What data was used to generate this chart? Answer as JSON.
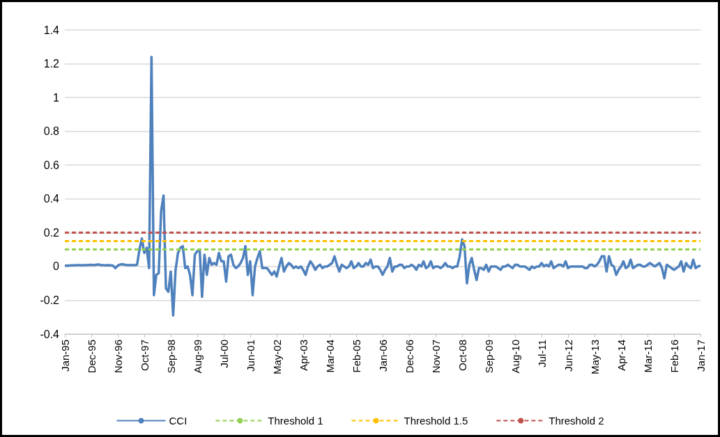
{
  "chart_data": {
    "type": "line",
    "categories": [
      "Jan-95",
      null,
      null,
      null,
      null,
      null,
      null,
      null,
      null,
      null,
      null,
      "Dec-95",
      null,
      null,
      null,
      null,
      null,
      null,
      null,
      null,
      null,
      null,
      "Nov-96",
      null,
      null,
      null,
      null,
      null,
      null,
      null,
      null,
      null,
      null,
      "Oct-97",
      null,
      null,
      null,
      null,
      null,
      null,
      null,
      null,
      null,
      null,
      "Sep-98",
      null,
      null,
      null,
      null,
      null,
      null,
      null,
      null,
      null,
      null,
      "Aug-99",
      null,
      null,
      null,
      null,
      null,
      null,
      null,
      null,
      null,
      null,
      "Jul-00",
      null,
      null,
      null,
      null,
      null,
      null,
      null,
      null,
      null,
      null,
      "Jun-01",
      null,
      null,
      null,
      null,
      null,
      null,
      null,
      null,
      null,
      null,
      "May-02",
      null,
      null,
      null,
      null,
      null,
      null,
      null,
      null,
      null,
      null,
      "Apr-03",
      null,
      null,
      null,
      null,
      null,
      null,
      null,
      null,
      null,
      null,
      "Mar-04",
      null,
      null,
      null,
      null,
      null,
      null,
      null,
      null,
      null,
      null,
      "Feb-05",
      null,
      null,
      null,
      null,
      null,
      null,
      null,
      null,
      null,
      null,
      "Jan-06",
      null,
      null,
      null,
      null,
      null,
      null,
      null,
      null,
      null,
      null,
      "Dec-06",
      null,
      null,
      null,
      null,
      null,
      null,
      null,
      null,
      null,
      null,
      "Nov-07",
      null,
      null,
      null,
      null,
      null,
      null,
      null,
      null,
      null,
      null,
      "Oct-08",
      null,
      null,
      null,
      null,
      null,
      null,
      null,
      null,
      null,
      null,
      "Sep-09",
      null,
      null,
      null,
      null,
      null,
      null,
      null,
      null,
      null,
      null,
      "Aug-10",
      null,
      null,
      null,
      null,
      null,
      null,
      null,
      null,
      null,
      null,
      "Jul-11",
      null,
      null,
      null,
      null,
      null,
      null,
      null,
      null,
      null,
      null,
      "Jun-12",
      null,
      null,
      null,
      null,
      null,
      null,
      null,
      null,
      null,
      null,
      "May-13",
      null,
      null,
      null,
      null,
      null,
      null,
      null,
      null,
      null,
      null,
      "Apr-14",
      null,
      null,
      null,
      null,
      null,
      null,
      null,
      null,
      null,
      null,
      "Mar-15",
      null,
      null,
      null,
      null,
      null,
      null,
      null,
      null,
      null,
      null,
      "Feb-16",
      null,
      null,
      null,
      null,
      null,
      null,
      null,
      null,
      null,
      null,
      "Jan-17"
    ],
    "series": [
      {
        "name": "CCI",
        "color": "#4f81bd",
        "line_style": "solid",
        "values": [
          0.005,
          0.005,
          0.006,
          0.007,
          0.007,
          0.008,
          0.008,
          0.007,
          0.008,
          0.008,
          0.009,
          0.01,
          0.008,
          0.01,
          0.012,
          0.008,
          0.008,
          0.007,
          0.008,
          0.007,
          0.005,
          -0.01,
          0.005,
          0.012,
          0.013,
          0.01,
          0.008,
          0.008,
          0.008,
          0.008,
          0.01,
          0.1,
          0.165,
          0.08,
          0.11,
          -0.01,
          1.24,
          -0.17,
          -0.05,
          -0.04,
          0.33,
          0.42,
          -0.13,
          -0.15,
          -0.03,
          -0.29,
          -0.02,
          0.08,
          0.11,
          0.12,
          -0.01,
          0.0,
          -0.05,
          -0.17,
          0.07,
          0.09,
          0.1,
          -0.18,
          0.07,
          -0.05,
          0.05,
          0.01,
          0.02,
          0.01,
          0.08,
          0.03,
          0.03,
          -0.09,
          0.06,
          0.07,
          0.01,
          -0.01,
          0.0,
          0.02,
          0.05,
          0.12,
          -0.05,
          0.03,
          -0.17,
          0.0,
          0.05,
          0.09,
          -0.01,
          -0.01,
          -0.01,
          -0.03,
          -0.05,
          -0.03,
          -0.06,
          0.0,
          0.05,
          -0.03,
          0.0,
          0.02,
          0.01,
          -0.01,
          0.0,
          -0.01,
          0.0,
          -0.02,
          -0.05,
          0.0,
          0.03,
          0.01,
          -0.02,
          0.0,
          0.01,
          -0.01,
          0.0,
          0.0,
          0.01,
          0.02,
          0.06,
          0.01,
          -0.03,
          0.01,
          0.0,
          -0.01,
          0.0,
          0.03,
          -0.01,
          0.0,
          0.02,
          0.0,
          0.0,
          0.02,
          0.01,
          0.04,
          -0.01,
          0.0,
          0.0,
          -0.02,
          -0.05,
          -0.02,
          0.0,
          0.05,
          -0.03,
          0.0,
          0.0,
          0.01,
          0.01,
          -0.01,
          0.0,
          0.0,
          0.01,
          0.0,
          -0.02,
          0.01,
          0.0,
          0.03,
          -0.01,
          0.0,
          0.03,
          -0.01,
          0.0,
          0.0,
          -0.01,
          0.0,
          0.02,
          0.0,
          0.0,
          -0.01,
          0.0,
          0.0,
          0.06,
          0.16,
          0.12,
          -0.1,
          0.01,
          0.05,
          -0.02,
          -0.08,
          -0.01,
          -0.01,
          -0.02,
          0.01,
          -0.03,
          0.0,
          0.0,
          0.0,
          -0.01,
          -0.02,
          0.0,
          0.0,
          0.01,
          0.0,
          -0.01,
          0.01,
          0.01,
          0.0,
          0.0,
          0.0,
          -0.01,
          -0.02,
          0.0,
          -0.01,
          0.0,
          0.0,
          0.02,
          0.0,
          0.01,
          0.0,
          0.03,
          -0.01,
          0.0,
          0.01,
          0.01,
          0.0,
          0.03,
          -0.01,
          0.0,
          0.0,
          0.0,
          0.0,
          0.0,
          0.0,
          -0.01,
          -0.01,
          0.01,
          0.01,
          0.0,
          0.01,
          0.03,
          0.06,
          0.06,
          -0.03,
          0.06,
          0.01,
          0.0,
          -0.05,
          -0.02,
          0.0,
          0.03,
          -0.01,
          0.0,
          0.04,
          -0.01,
          0.0,
          0.01,
          0.01,
          0.0,
          0.0,
          0.01,
          0.02,
          0.01,
          0.0,
          0.01,
          0.02,
          -0.01,
          -0.07,
          0.01,
          0.0,
          -0.01,
          -0.02,
          -0.01,
          0.0,
          0.03,
          -0.03,
          0.02,
          0.0,
          -0.01,
          0.04,
          -0.01,
          0.0,
          0.005
        ]
      },
      {
        "name": "Threshold 1",
        "color": "#92d050",
        "line_style": "dashed",
        "x": [
          "Jan-95",
          "Jan-17"
        ],
        "values": [
          0.1,
          0.1
        ]
      },
      {
        "name": "Threshold 1.5",
        "color": "#ffc000",
        "line_style": "dashed",
        "x": [
          "Jan-95",
          "Jan-17"
        ],
        "values": [
          0.15,
          0.15
        ]
      },
      {
        "name": "Threshold 2",
        "color": "#c0504d",
        "line_style": "dashed",
        "x": [
          "Jan-95",
          "Jan-17"
        ],
        "values": [
          0.2,
          0.2
        ]
      }
    ],
    "ylim": [
      -0.4,
      1.4
    ],
    "yticks": [
      -0.4,
      -0.2,
      0,
      0.2,
      0.4,
      0.6,
      0.8,
      1,
      1.2,
      1.4
    ],
    "grid": "y",
    "legend": "bottom",
    "marker": "none"
  }
}
